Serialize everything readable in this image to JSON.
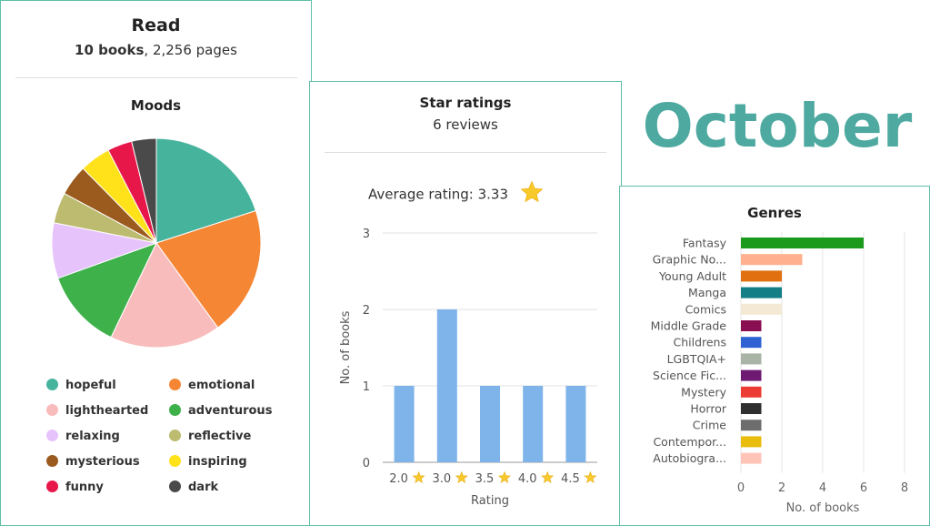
{
  "read": {
    "title": "Read",
    "books": "10 books",
    "pages": ", 2,256 pages"
  },
  "month": "October",
  "moods": {
    "title": "Moods",
    "chart_data": {
      "type": "pie",
      "labels": [
        "hopeful",
        "emotional",
        "lighthearted",
        "adventurous",
        "relaxing",
        "reflective",
        "mysterious",
        "inspiring",
        "funny",
        "dark"
      ],
      "values": [
        21,
        21,
        18,
        13,
        9,
        5,
        5,
        5,
        4,
        4
      ],
      "colors": [
        "#46b39d",
        "#f58634",
        "#f9bcbc",
        "#3eb14b",
        "#e7c3fb",
        "#bcbb70",
        "#9b5b1f",
        "#ffe21a",
        "#e8174a",
        "#4a4a4a"
      ]
    }
  },
  "stars": {
    "title": "Star ratings",
    "reviews": "6 reviews",
    "average_label": "Average rating: 3.33",
    "chart_data": {
      "type": "bar",
      "categories": [
        "2.0",
        "3.0",
        "3.5",
        "4.0",
        "4.5"
      ],
      "values": [
        1,
        2,
        1,
        1,
        1
      ],
      "ylim": [
        0,
        3
      ],
      "yticks": [
        "0",
        "1",
        "2",
        "3"
      ],
      "xlabel": "Rating",
      "ylabel": "No. of books",
      "color": "#7fb4ea"
    }
  },
  "genres": {
    "title": "Genres",
    "chart_data": {
      "type": "bar",
      "orientation": "horizontal",
      "categories": [
        "Fantasy",
        "Graphic No...",
        "Young Adult",
        "Manga",
        "Comics",
        "Middle Grade",
        "Childrens",
        "LGBTQIA+",
        "Science Fic...",
        "Mystery",
        "Horror",
        "Crime",
        "Contempor...",
        "Autobiogra..."
      ],
      "values": [
        6,
        3,
        2,
        2,
        2,
        1,
        1,
        1,
        1,
        1,
        1,
        1,
        1,
        1
      ],
      "colors": [
        "#1b9a1b",
        "#ffb08e",
        "#e07010",
        "#137e86",
        "#f4e9d4",
        "#8a0f52",
        "#2f62d3",
        "#a9b4a7",
        "#6e1a73",
        "#ec3b32",
        "#2f2f2f",
        "#6d6d6d",
        "#e8bd0e",
        "#ffc4b8"
      ],
      "xlim": [
        0,
        8
      ],
      "xticks": [
        "0",
        "2",
        "4",
        "6",
        "8"
      ],
      "xlabel": "No. of books"
    }
  }
}
